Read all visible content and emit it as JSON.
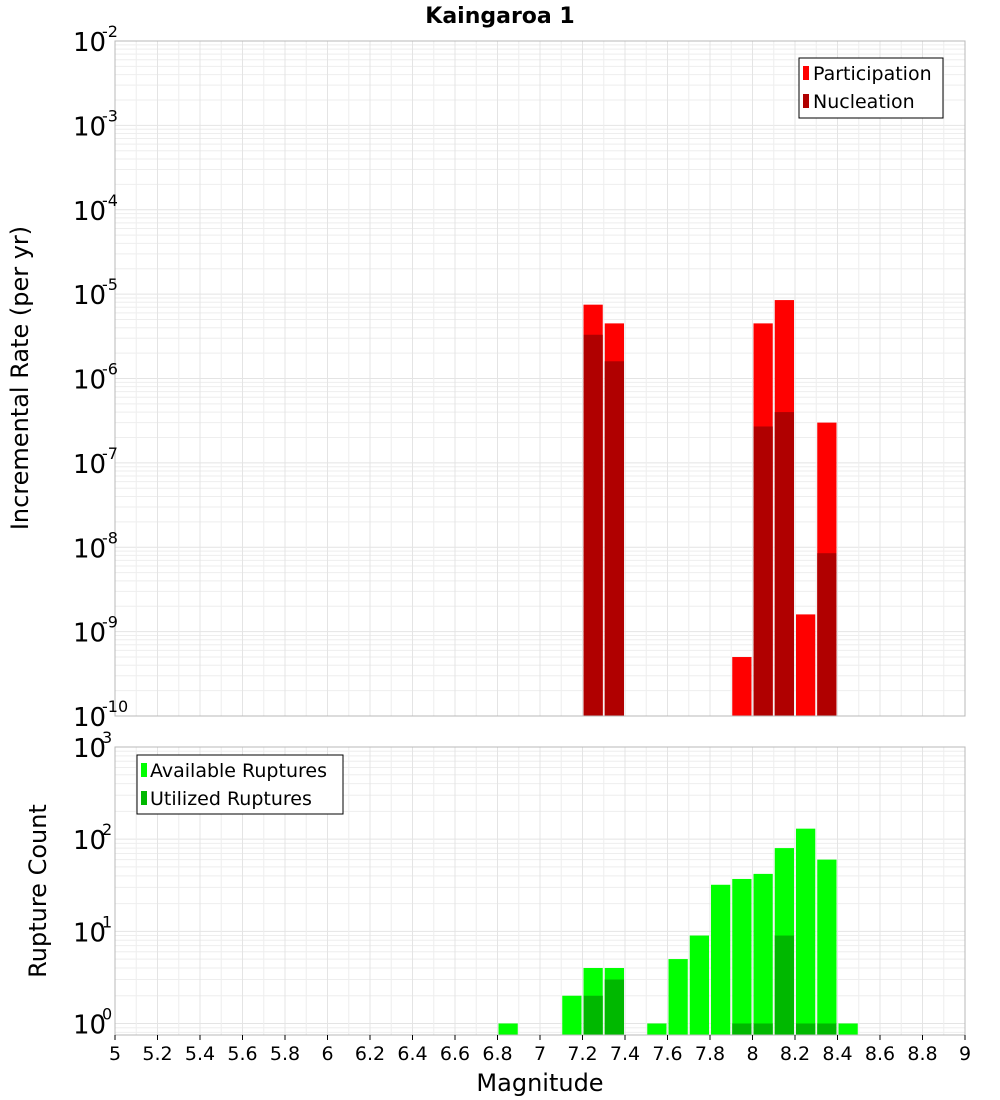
{
  "chart": {
    "title": "Kaingaroa 1",
    "xlabel": "Magnitude",
    "x_ticks": [
      "5",
      "5.2",
      "5.4",
      "5.6",
      "5.8",
      "6",
      "6.2",
      "6.4",
      "6.6",
      "6.8",
      "7",
      "7.2",
      "7.4",
      "7.6",
      "7.8",
      "8",
      "8.2",
      "8.4",
      "8.6",
      "8.8",
      "9"
    ]
  },
  "chart_data": [
    {
      "type": "bar",
      "title": "Kaingaroa 1",
      "ylabel": "Incremental Rate (per yr)",
      "xlabel": "Magnitude",
      "y_scale": "log",
      "xlim": [
        5,
        9
      ],
      "ylim": [
        1e-10,
        0.01
      ],
      "y_ticks": [
        {
          "base": "10",
          "exp": "-2"
        },
        {
          "base": "10",
          "exp": "-3"
        },
        {
          "base": "10",
          "exp": "-4"
        },
        {
          "base": "10",
          "exp": "-5"
        },
        {
          "base": "10",
          "exp": "-6"
        },
        {
          "base": "10",
          "exp": "-7"
        },
        {
          "base": "10",
          "exp": "-8"
        },
        {
          "base": "10",
          "exp": "-9"
        },
        {
          "base": "10",
          "exp": "-10"
        }
      ],
      "legend": "top-right",
      "grid": true,
      "series": [
        {
          "name": "Participation",
          "color": "#ff0000",
          "x": [
            7.25,
            7.35,
            7.95,
            8.05,
            8.15,
            8.25,
            8.35
          ],
          "values": [
            7.5e-06,
            4.5e-06,
            5e-10,
            4.5e-06,
            8.5e-06,
            1.6e-09,
            3e-07
          ]
        },
        {
          "name": "Nucleation",
          "color": "#b00000",
          "x": [
            7.25,
            7.35,
            8.05,
            8.15,
            8.35
          ],
          "values": [
            3.3e-06,
            1.6e-06,
            2.7e-07,
            4e-07,
            8.5e-09
          ]
        }
      ]
    },
    {
      "type": "bar",
      "ylabel": "Rupture Count",
      "xlabel": "Magnitude",
      "y_scale": "log",
      "xlim": [
        5,
        9
      ],
      "ylim": [
        0.75,
        1000
      ],
      "y_ticks": [
        {
          "base": "10",
          "exp": "3"
        },
        {
          "base": "10",
          "exp": "2"
        },
        {
          "base": "10",
          "exp": "1"
        },
        {
          "base": "10",
          "exp": "0"
        }
      ],
      "legend": "top-left",
      "grid": true,
      "series": [
        {
          "name": "Available Ruptures",
          "color": "#00ff00",
          "x": [
            6.85,
            7.15,
            7.25,
            7.35,
            7.55,
            7.65,
            7.75,
            7.85,
            7.95,
            8.05,
            8.15,
            8.25,
            8.35,
            8.45
          ],
          "values": [
            1,
            2,
            4,
            4,
            1,
            5,
            9,
            32,
            37,
            42,
            80,
            130,
            60,
            1
          ]
        },
        {
          "name": "Utilized Ruptures",
          "color": "#00b800",
          "x": [
            7.25,
            7.35,
            7.95,
            8.05,
            8.15,
            8.25,
            8.35
          ],
          "values": [
            2,
            3,
            1,
            1,
            9,
            1,
            1
          ]
        }
      ]
    }
  ]
}
